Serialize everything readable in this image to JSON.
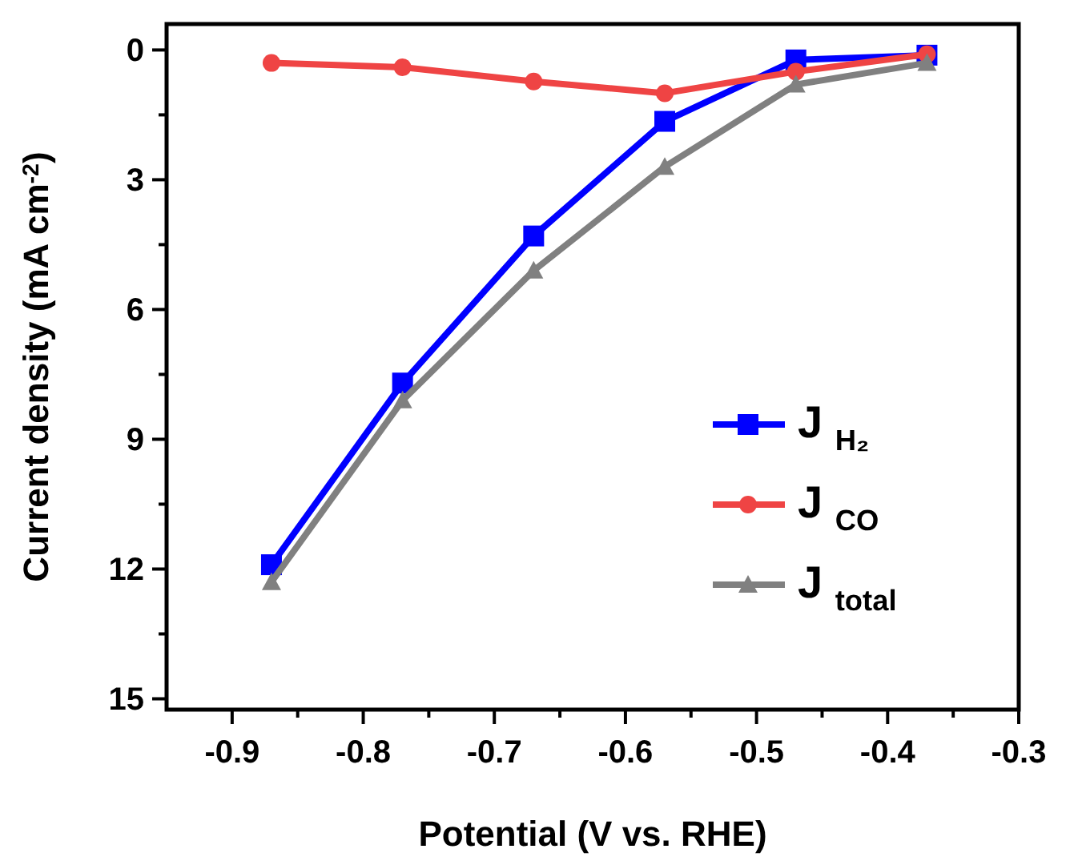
{
  "chart_data": {
    "type": "line",
    "xlabel": "Potential (V vs. RHE)",
    "ylabel": "Current density (mA cm$^{-2}$)",
    "x": [
      -0.87,
      -0.77,
      -0.67,
      -0.57,
      -0.47,
      -0.37
    ],
    "series": [
      {
        "name": "J $_{H₂}$",
        "color": "#0000ff",
        "marker": "square",
        "values": [
          11.9,
          7.7,
          4.3,
          1.65,
          0.23,
          0.12
        ]
      },
      {
        "name": "J $_{CO}$",
        "color": "#ef4444",
        "marker": "circle",
        "values": [
          0.3,
          0.4,
          0.73,
          1.0,
          0.5,
          0.1
        ]
      },
      {
        "name": "J $_{total}$",
        "color": "#808080",
        "marker": "triangle",
        "values": [
          12.3,
          8.1,
          5.1,
          2.7,
          0.8,
          0.3
        ]
      }
    ],
    "xlim": [
      -0.95,
      -0.3
    ],
    "ylim": [
      15.25,
      -0.6
    ],
    "xticks": [
      -0.9,
      {
        "value": -0.85,
        "label": null
      },
      -0.8,
      {
        "value": -0.75,
        "label": null
      },
      -0.7,
      {
        "value": -0.65,
        "label": null
      },
      -0.6,
      {
        "value": -0.55,
        "label": null
      },
      -0.5,
      {
        "value": -0.45,
        "label": null
      },
      -0.4,
      {
        "value": -0.35,
        "label": null
      },
      -0.3
    ],
    "yticks": [
      0,
      {
        "value": 1.5,
        "label": null
      },
      3,
      {
        "value": 4.5,
        "label": null
      },
      6,
      {
        "value": 7.5,
        "label": null
      },
      9,
      {
        "value": 10.5,
        "label": null
      },
      12,
      {
        "value": 13.5,
        "label": null
      },
      15
    ],
    "legend": "right",
    "grid": false,
    "line_style": "solid"
  }
}
